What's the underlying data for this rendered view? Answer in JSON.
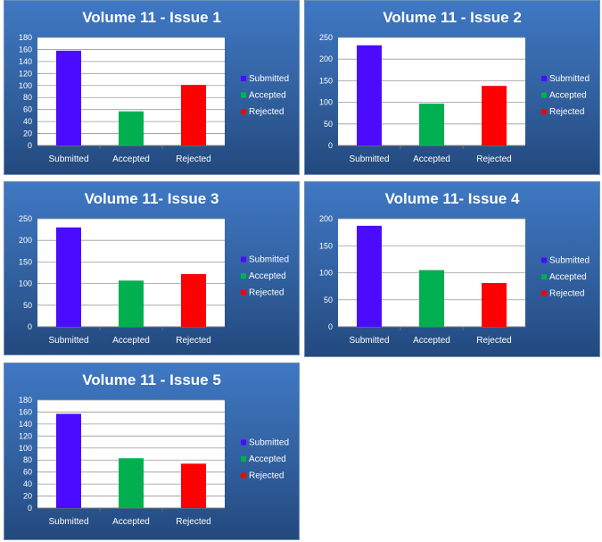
{
  "chart_data": [
    {
      "type": "bar",
      "title": "Volume 11 - Issue 1",
      "categories": [
        "Submitted",
        "Accepted",
        "Rejected"
      ],
      "values": [
        158,
        57,
        101
      ],
      "ylim": [
        0,
        180
      ],
      "yticks": [
        0,
        20,
        40,
        60,
        80,
        100,
        120,
        140,
        160,
        180
      ],
      "colors": [
        "#4b0bff",
        "#00b050",
        "#ff0000"
      ],
      "legend": [
        "Submitted",
        "Accepted",
        "Rejected"
      ],
      "legend_position": "right",
      "grid": true
    },
    {
      "type": "bar",
      "title": "Volume 11 - Issue 2",
      "categories": [
        "Submitted",
        "Accepted",
        "Rejected"
      ],
      "values": [
        232,
        97,
        138
      ],
      "ylim": [
        0,
        250
      ],
      "yticks": [
        0,
        50,
        100,
        150,
        200,
        250
      ],
      "colors": [
        "#4b0bff",
        "#00b050",
        "#ff0000"
      ],
      "legend": [
        "Submitted",
        "Accepted",
        "Rejected"
      ],
      "legend_position": "right",
      "grid": true
    },
    {
      "type": "bar",
      "title": "Volume 11- Issue 3",
      "categories": [
        "Submitted",
        "Accepted",
        "Rejected"
      ],
      "values": [
        230,
        107,
        122
      ],
      "ylim": [
        0,
        250
      ],
      "yticks": [
        0,
        50,
        100,
        150,
        200,
        250
      ],
      "colors": [
        "#4b0bff",
        "#00b050",
        "#ff0000"
      ],
      "legend": [
        "Submitted",
        "Accepted",
        "Rejected"
      ],
      "legend_position": "right",
      "grid": true
    },
    {
      "type": "bar",
      "title": "Volume 11- Issue 4",
      "categories": [
        "Submitted",
        "Accepted",
        "Rejected"
      ],
      "values": [
        187,
        105,
        81
      ],
      "ylim": [
        0,
        200
      ],
      "yticks": [
        0,
        50,
        100,
        150,
        200
      ],
      "colors": [
        "#4b0bff",
        "#00b050",
        "#ff0000"
      ],
      "legend": [
        "Submitted",
        "Accepted",
        "Rejected"
      ],
      "legend_position": "right",
      "grid": true
    },
    {
      "type": "bar",
      "title": "Volume 11 - Issue 5",
      "categories": [
        "Submitted",
        "Accepted",
        "Rejected"
      ],
      "values": [
        157,
        83,
        74
      ],
      "ylim": [
        0,
        180
      ],
      "yticks": [
        0,
        20,
        40,
        60,
        80,
        100,
        120,
        140,
        160,
        180
      ],
      "colors": [
        "#4b0bff",
        "#00b050",
        "#ff0000"
      ],
      "legend": [
        "Submitted",
        "Accepted",
        "Rejected"
      ],
      "legend_position": "right",
      "grid": true
    }
  ]
}
